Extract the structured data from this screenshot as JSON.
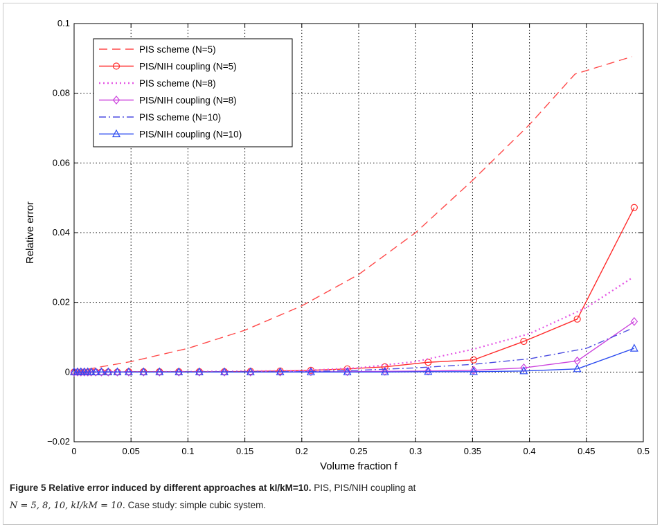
{
  "chart_data": {
    "type": "line",
    "title": "",
    "xlabel": "Volume fraction f",
    "ylabel": "Relative error",
    "xlim": [
      0,
      0.5
    ],
    "ylim": [
      -0.02,
      0.1
    ],
    "xticks": [
      0,
      0.05,
      0.1,
      0.15,
      0.2,
      0.25,
      0.3,
      0.35,
      0.4,
      0.45,
      0.5
    ],
    "xtick_labels": [
      "0",
      "0.05",
      "0.1",
      "0.15",
      "0.2",
      "0.25",
      "0.3",
      "0.35",
      "0.4",
      "0.45",
      "0.5"
    ],
    "yticks": [
      -0.02,
      0,
      0.02,
      0.04,
      0.06,
      0.08,
      0.1
    ],
    "ytick_labels": [
      "−0.02",
      "0",
      "0.02",
      "0.04",
      "0.06",
      "0.08",
      "0.1"
    ],
    "grid": true,
    "legend_position": "top-left",
    "series": [
      {
        "name": "PIS scheme (N=5)",
        "color": "#ff4a4a",
        "dash": "dashed",
        "marker": "none",
        "x": [
          0,
          0.02,
          0.05,
          0.1,
          0.15,
          0.2,
          0.25,
          0.3,
          0.35,
          0.4,
          0.44,
          0.49
        ],
        "y": [
          0,
          0.0013,
          0.003,
          0.0068,
          0.012,
          0.019,
          0.028,
          0.04,
          0.055,
          0.071,
          0.0855,
          0.0905
        ]
      },
      {
        "name": "PIS/NIH coupling (N=5)",
        "color": "#ff2a2a",
        "dash": "solid",
        "marker": "circle",
        "x": [
          0.0,
          0.003,
          0.006,
          0.009,
          0.012,
          0.015,
          0.019,
          0.024,
          0.03,
          0.038,
          0.048,
          0.061,
          0.075,
          0.092,
          0.11,
          0.132,
          0.155,
          0.181,
          0.208,
          0.24,
          0.273,
          0.311,
          0.351,
          0.395,
          0.442,
          0.492
        ],
        "y": [
          0,
          0,
          0,
          0,
          0,
          0,
          0,
          0,
          0,
          0,
          0.0001,
          0.0001,
          0.0001,
          0.0001,
          0.0001,
          0.0001,
          0.0002,
          0.0003,
          0.0005,
          0.0009,
          0.0015,
          0.0028,
          0.0035,
          0.0088,
          0.0152,
          0.0472
        ]
      },
      {
        "name": "PIS scheme (N=8)",
        "color": "#e455e4",
        "dash": "dotted",
        "marker": "none",
        "x": [
          0,
          0.1,
          0.2,
          0.25,
          0.3,
          0.35,
          0.4,
          0.45,
          0.49
        ],
        "y": [
          0,
          0.0001,
          0.0004,
          0.0012,
          0.003,
          0.0065,
          0.011,
          0.0185,
          0.027
        ]
      },
      {
        "name": "PIS/NIH coupling (N=8)",
        "color": "#cc44dd",
        "dash": "solid",
        "marker": "diamond",
        "x": [
          0.0,
          0.003,
          0.006,
          0.009,
          0.012,
          0.015,
          0.019,
          0.024,
          0.03,
          0.038,
          0.048,
          0.061,
          0.075,
          0.092,
          0.11,
          0.132,
          0.155,
          0.181,
          0.208,
          0.24,
          0.273,
          0.311,
          0.351,
          0.395,
          0.442,
          0.492
        ],
        "y": [
          0,
          0,
          0,
          0,
          0,
          0,
          0,
          0,
          0,
          0,
          0,
          0,
          0,
          0,
          0,
          0,
          0,
          0,
          0.0001,
          0.0001,
          0.0002,
          0.0003,
          0.0005,
          0.0012,
          0.0032,
          0.0145
        ]
      },
      {
        "name": "PIS scheme (N=10)",
        "color": "#4a4ae0",
        "dash": "dashdot",
        "marker": "none",
        "x": [
          0,
          0.2,
          0.25,
          0.3,
          0.35,
          0.4,
          0.45,
          0.49
        ],
        "y": [
          0,
          0.0001,
          0.0005,
          0.0012,
          0.0022,
          0.0038,
          0.0068,
          0.0125
        ]
      },
      {
        "name": "PIS/NIH coupling (N=10)",
        "color": "#2a4af0",
        "dash": "solid",
        "marker": "triangle",
        "x": [
          0.0,
          0.003,
          0.006,
          0.009,
          0.012,
          0.015,
          0.019,
          0.024,
          0.03,
          0.038,
          0.048,
          0.061,
          0.075,
          0.092,
          0.11,
          0.132,
          0.155,
          0.181,
          0.208,
          0.24,
          0.273,
          0.311,
          0.351,
          0.395,
          0.442,
          0.492
        ],
        "y": [
          0,
          0,
          0,
          0,
          0,
          0,
          0,
          0,
          0,
          0,
          0,
          0,
          0,
          0,
          0,
          0,
          0,
          0,
          0,
          0,
          0,
          0.0001,
          0.0001,
          0.0003,
          0.0009,
          0.0068
        ]
      }
    ]
  },
  "caption": {
    "bold_text": "Figure 5 Relative error induced by different approaches at kI/kM=10.",
    "text": " PIS, PIS/NIH coupling at",
    "line2_math": "N = 5, 8, 10, kI/kM = 10.",
    "line2_text": " Case study: simple cubic system."
  }
}
